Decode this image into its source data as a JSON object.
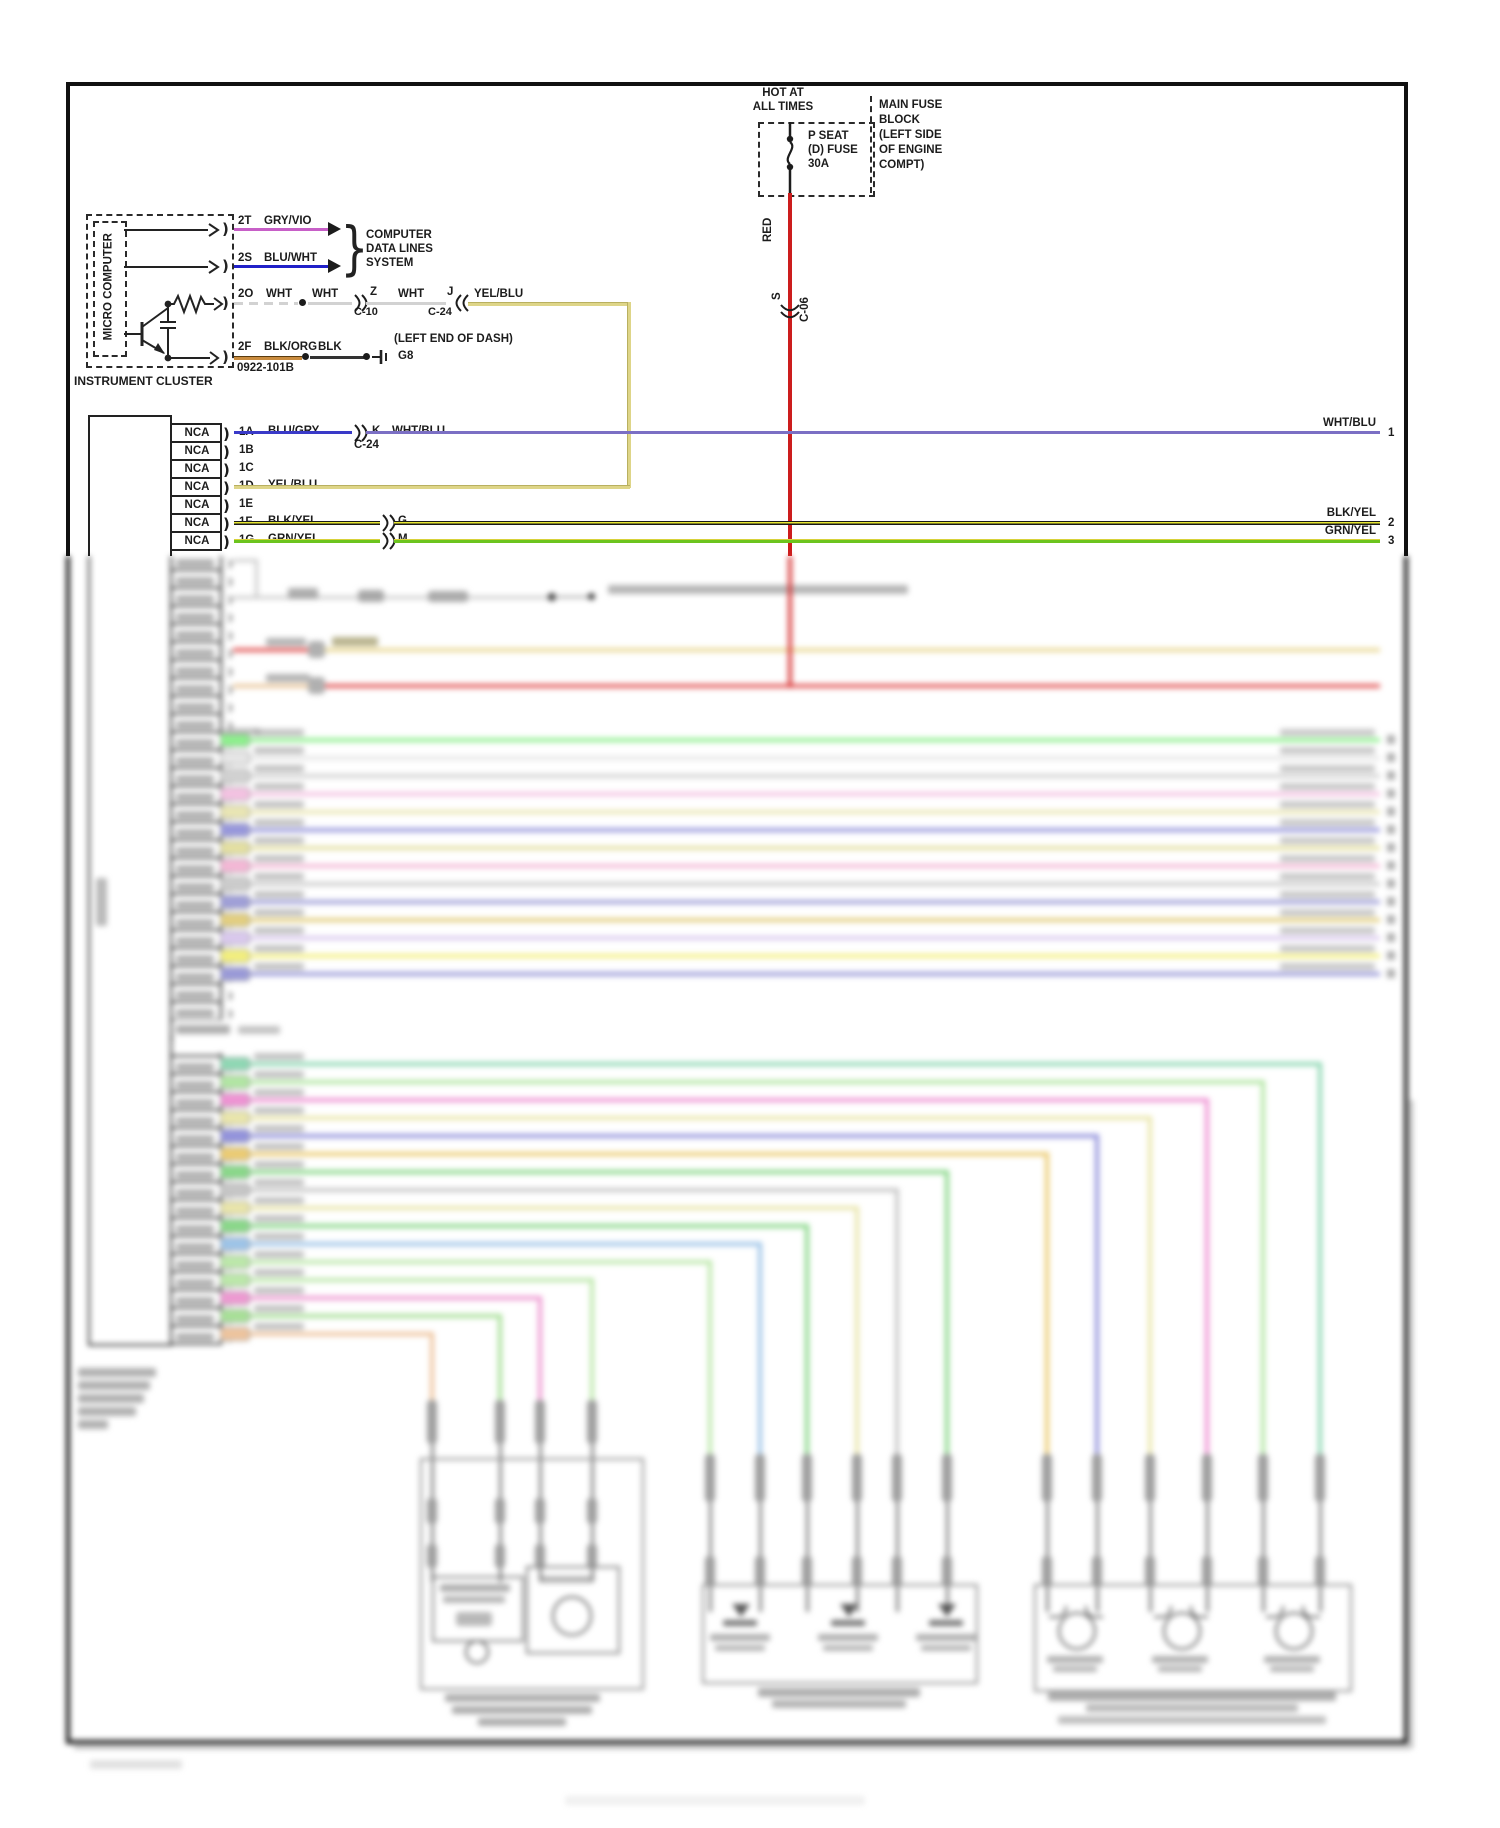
{
  "title_block": {
    "hot_line1": "HOT AT",
    "hot_line2": "ALL TIMES",
    "fuse_line1": "P SEAT",
    "fuse_line2": "(D) FUSE",
    "fuse_line3": "30A",
    "block_lines": [
      "MAIN FUSE",
      "BLOCK",
      "(LEFT SIDE",
      "OF ENGINE",
      "COMPT)"
    ],
    "wire_color": "RED",
    "connector_pin": "S",
    "connector_id": "C-06"
  },
  "cluster": {
    "inner_label": "MICRO COMPUTER",
    "outer_label": "INSTRUMENT CLUSTER",
    "connector_id": "0922-101B",
    "data_lines_label": [
      "COMPUTER",
      "DATA LINES",
      "SYSTEM"
    ],
    "row_2t": {
      "pin": "2T",
      "wire": "GRY/VIO"
    },
    "row_2s": {
      "pin": "2S",
      "wire": "BLU/WHT"
    },
    "row_2o": {
      "pin": "2O",
      "wire": "WHT",
      "mid_label": "WHT",
      "conn1_pin": "Z",
      "conn1_id": "C-10",
      "mid_label2": "WHT",
      "conn2_pin": "J",
      "conn2_id": "C-24",
      "out_color": "YEL/BLU"
    },
    "row_2f": {
      "pin": "2F",
      "wire": "BLK/ORG",
      "mid_label": "BLK",
      "ground_note": "(LEFT END OF DASH)",
      "ground_id": "G8"
    }
  },
  "module": {
    "rows": [
      {
        "left": "NCA",
        "pin": "1A",
        "wire": "BLU/GRY",
        "conn_pin": "K",
        "conn_color": "WHT/BLU",
        "conn_id": "C-24"
      },
      {
        "left": "NCA",
        "pin": "1B"
      },
      {
        "left": "NCA",
        "pin": "1C"
      },
      {
        "left": "NCA",
        "pin": "1D",
        "wire": "YEL/BLU"
      },
      {
        "left": "NCA",
        "pin": "1E"
      },
      {
        "left": "NCA",
        "pin": "1F",
        "wire": "BLK/YEL",
        "conn_pin": "G"
      },
      {
        "left": "NCA",
        "pin": "1G",
        "wire": "GRN/YEL",
        "conn_pin": "M"
      }
    ]
  },
  "right_edge": {
    "wires": [
      {
        "label": "WHT/BLU",
        "num": "1"
      },
      {
        "label": "BLK/YEL",
        "num": "2"
      },
      {
        "label": "GRN/YEL",
        "num": "3"
      }
    ]
  },
  "colors": {
    "red": "#cc1d1d",
    "gry_vio": "#c75fc7",
    "blu_wht": "#2020c8",
    "wht": "#d2d2d2",
    "yel_blu": "#ded588",
    "blk_org": "#c98b3e",
    "blk": "#333333",
    "blu_gry": "#3a3ac8",
    "wht_blu": "#7b6fc4",
    "blk_yel": "#e8e832",
    "grn_yel": "#6cc41e"
  },
  "blurred_bands": {
    "band_a": {
      "gray": "#c8c8c8",
      "red": "#e35b5b",
      "yellow": "#ead998",
      "tan": "#eac89e"
    },
    "upper_wire_colors": [
      "#8ef08e",
      "#e6e6e6",
      "#d2d2d2",
      "#f4c2e2",
      "#eae6b4",
      "#9898dc",
      "#e4e0a2",
      "#f4b8d6",
      "#cccccc",
      "#9f9fd8",
      "#e3cf80",
      "#dac9ee",
      "#f3ef7e",
      "#9a9ad8"
    ],
    "lower_wire_colors": [
      "#8fd8b4",
      "#b2e6a4",
      "#ef93d4",
      "#eae6ac",
      "#9393dc",
      "#eccc74",
      "#8ad88a",
      "#c6c6c6",
      "#e9e5ab",
      "#8ad88a",
      "#9ec4e8",
      "#bce8aa",
      "#bce8aa",
      "#ee9ad2",
      "#a8e098",
      "#eec49e"
    ]
  }
}
